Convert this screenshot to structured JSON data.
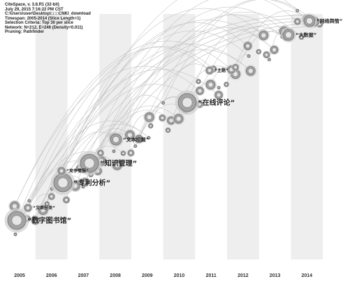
{
  "info_lines": [
    "CiteSpace, v. 3.8.R1 (32-bit)",
    "July 29, 2015 7:16:22 PM CST",
    "C:\\Users\\user\\Desktop\\□□□CNKI_download",
    "Timespan: 2005-2014 (Slice Length=1)",
    "Selection Criteria: Top 30 per slice",
    "Network: N=212, E=246 (Density=0.011)",
    "Pruning: Pathfinder"
  ],
  "years": [
    "2005",
    "2006",
    "2007",
    "2008",
    "2009",
    "2010",
    "2011",
    "2012",
    "2013",
    "2014"
  ],
  "keywords": [
    {
      "label": "“数字图书馆”",
      "size": "large"
    },
    {
      "label": "“文本分类”",
      "size": "small"
    },
    {
      "label": "“专利分析”",
      "size": "large"
    },
    {
      "label": "“竞争情报”",
      "size": "small"
    },
    {
      "label": "“知识管理”",
      "size": "large"
    },
    {
      "label": "“文本挖掘”",
      "size": "medium"
    },
    {
      "label": "“在线评论”",
      "size": "large"
    },
    {
      "label": "“主题”",
      "size": "small"
    },
    {
      "label": "“大数据”",
      "size": "medium"
    },
    {
      "label": "“网络舆情”",
      "size": "medium"
    }
  ],
  "colors": {
    "background": "#ffffff",
    "year_band": "#eeeeee",
    "node_outer": "#cfcfcf",
    "node_inner": "#a3a3a3",
    "node_ring": "#6e6e6e",
    "link": "#c4c4c4",
    "text": "#222222"
  }
}
